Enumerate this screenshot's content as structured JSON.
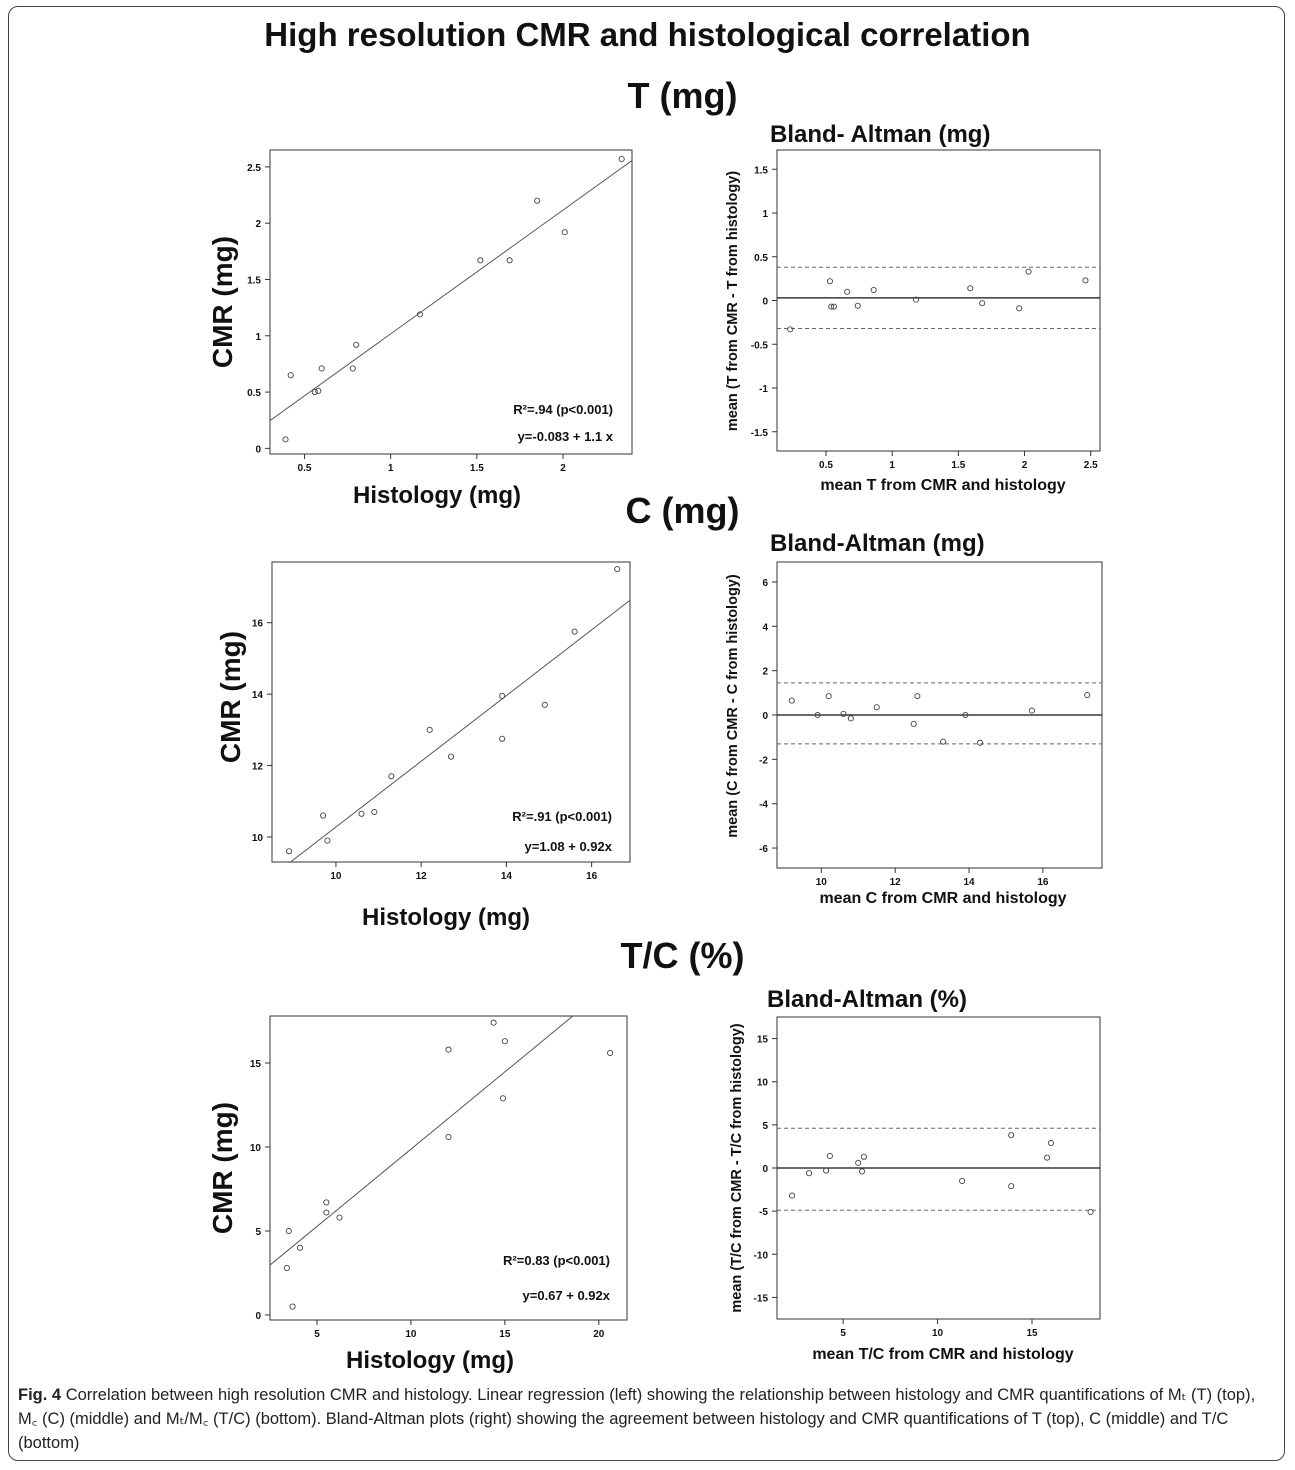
{
  "figure": {
    "title": "High resolution CMR and histological correlation",
    "sections": [
      "T (mg)",
      "C (mg)",
      "T/C (%)"
    ],
    "caption_label": "Fig. 4",
    "caption_text": "Correlation between high resolution CMR and histology. Linear regression (left) showing the relationship between histology and CMR quantifications of Mₜ (T) (top), M꜀ (C) (middle) and Mₜ/M꜀ (T/C) (bottom). Bland-Altman plots (right) showing the agreement between histology and CMR quantifications of T (top), C (middle) and T/C (bottom)"
  },
  "chart_data": [
    {
      "type": "scatter",
      "title": "",
      "xlabel": "Histology (mg)",
      "ylabel": "CMR (mg)",
      "xlim": [
        0.3,
        2.4
      ],
      "ylim": [
        -0.05,
        2.65
      ],
      "xticks": [
        0.5,
        1,
        1.5,
        2
      ],
      "yticks": [
        0,
        0.5,
        1,
        1.5,
        2,
        2.5
      ],
      "points": [
        [
          0.39,
          0.08
        ],
        [
          0.42,
          0.65
        ],
        [
          0.56,
          0.5
        ],
        [
          0.58,
          0.51
        ],
        [
          0.6,
          0.71
        ],
        [
          0.78,
          0.71
        ],
        [
          0.8,
          0.92
        ],
        [
          1.17,
          1.19
        ],
        [
          1.52,
          1.67
        ],
        [
          1.69,
          1.67
        ],
        [
          1.85,
          2.2
        ],
        [
          2.01,
          1.92
        ],
        [
          2.34,
          2.57
        ]
      ],
      "regression": {
        "intercept": -0.083,
        "slope": 1.1
      },
      "annotations": [
        "R²=.94 (p<0.001)",
        "y=-0.083 + 1.1 x"
      ]
    },
    {
      "type": "scatter",
      "title": "Bland- Altman (mg)",
      "xlabel": "mean T from CMR and histology",
      "ylabel": "mean (T from CMR - T from histology)",
      "xlim": [
        0.13,
        2.57
      ],
      "ylim": [
        -1.72,
        1.72
      ],
      "xticks": [
        0.5,
        1,
        1.5,
        2,
        2.5
      ],
      "yticks": [
        1.5,
        1,
        0.5,
        0,
        -0.5,
        -1,
        -1.5
      ],
      "points": [
        [
          0.23,
          -0.33
        ],
        [
          0.53,
          0.22
        ],
        [
          0.54,
          -0.07
        ],
        [
          0.56,
          -0.07
        ],
        [
          0.66,
          0.1
        ],
        [
          0.74,
          -0.06
        ],
        [
          0.86,
          0.12
        ],
        [
          1.18,
          0.01
        ],
        [
          1.59,
          0.14
        ],
        [
          1.68,
          -0.03
        ],
        [
          1.96,
          -0.09
        ],
        [
          2.03,
          0.33
        ],
        [
          2.46,
          0.23
        ]
      ],
      "mean_line": 0.03,
      "limits": [
        0.38,
        -0.32
      ]
    },
    {
      "type": "scatter",
      "title": "",
      "xlabel": "Histology (mg)",
      "ylabel": "CMR (mg)",
      "xlim": [
        8.5,
        16.9
      ],
      "ylim": [
        9.3,
        17.7
      ],
      "xticks": [
        10,
        12,
        14,
        16
      ],
      "yticks": [
        10,
        12,
        14,
        16
      ],
      "points": [
        [
          8.9,
          9.6
        ],
        [
          9.7,
          10.6
        ],
        [
          9.8,
          9.9
        ],
        [
          10.6,
          10.65
        ],
        [
          10.9,
          10.7
        ],
        [
          11.3,
          11.7
        ],
        [
          12.2,
          13
        ],
        [
          12.7,
          12.25
        ],
        [
          13.9,
          13.95
        ],
        [
          13.9,
          12.75
        ],
        [
          14.9,
          13.7
        ],
        [
          15.6,
          15.75
        ],
        [
          16.6,
          17.5
        ]
      ],
      "regression": {
        "intercept": 1.08,
        "slope": 0.92
      },
      "annotations": [
        "R²=.91 (p<0.001)",
        "y=1.08 + 0.92x"
      ]
    },
    {
      "type": "scatter",
      "title": "Bland-Altman (mg)",
      "xlabel": "mean C from CMR and histology",
      "ylabel": "mean (C from CMR - C from histology)",
      "xlim": [
        8.8,
        17.6
      ],
      "ylim": [
        -6.9,
        6.9
      ],
      "xticks": [
        10,
        12,
        14,
        16
      ],
      "yticks": [
        6,
        4,
        2,
        0,
        -2,
        -4,
        -6
      ],
      "points": [
        [
          9.2,
          0.65
        ],
        [
          9.9,
          0
        ],
        [
          10.2,
          0.85
        ],
        [
          10.6,
          0.05
        ],
        [
          10.8,
          -0.15
        ],
        [
          11.5,
          0.35
        ],
        [
          12.5,
          -0.4
        ],
        [
          12.6,
          0.85
        ],
        [
          13.3,
          -1.2
        ],
        [
          13.9,
          0
        ],
        [
          14.3,
          -1.25
        ],
        [
          15.7,
          0.2
        ],
        [
          17.2,
          0.9
        ]
      ],
      "mean_line": 0.0,
      "limits": [
        1.45,
        -1.3
      ]
    },
    {
      "type": "scatter",
      "title": "",
      "xlabel": "Histology (mg)",
      "ylabel": "CMR (mg)",
      "xlim": [
        2.5,
        21.5
      ],
      "ylim": [
        -0.3,
        17.8
      ],
      "xticks": [
        5,
        10,
        15,
        20
      ],
      "yticks": [
        0,
        5,
        10,
        15
      ],
      "points": [
        [
          3.4,
          2.8
        ],
        [
          3.5,
          5
        ],
        [
          3.7,
          0.5
        ],
        [
          4.1,
          4
        ],
        [
          5.5,
          6.7
        ],
        [
          5.5,
          6.1
        ],
        [
          6.2,
          5.8
        ],
        [
          12,
          10.6
        ],
        [
          12,
          15.8
        ],
        [
          14.4,
          17.4
        ],
        [
          14.9,
          12.9
        ],
        [
          15,
          16.3
        ],
        [
          20.6,
          15.6
        ]
      ],
      "regression": {
        "intercept": 0.67,
        "slope": 0.92
      },
      "annotations": [
        "R²=0.83 (p<0.001)",
        "y=0.67 + 0.92x"
      ]
    },
    {
      "type": "scatter",
      "title": "Bland-Altman (%)",
      "xlabel": "mean T/C from CMR and histology",
      "ylabel": "mean (T/C from CMR - T/C from histology)",
      "xlim": [
        1.5,
        18.6
      ],
      "ylim": [
        -17.5,
        17.5
      ],
      "xticks": [
        5,
        10,
        15
      ],
      "yticks": [
        15,
        10,
        5,
        0,
        -5,
        -10,
        -15
      ],
      "points": [
        [
          2.3,
          -3.2
        ],
        [
          3.2,
          -0.6
        ],
        [
          4.1,
          -0.3
        ],
        [
          4.3,
          1.4
        ],
        [
          5.8,
          0.6
        ],
        [
          6,
          -0.4
        ],
        [
          6.1,
          1.3
        ],
        [
          11.3,
          -1.5
        ],
        [
          13.9,
          3.8
        ],
        [
          13.9,
          -2.1
        ],
        [
          15.8,
          1.2
        ],
        [
          16,
          2.9
        ],
        [
          18.1,
          -5.1
        ]
      ],
      "mean_line": 0.0,
      "limits": [
        4.6,
        -4.9
      ]
    }
  ]
}
